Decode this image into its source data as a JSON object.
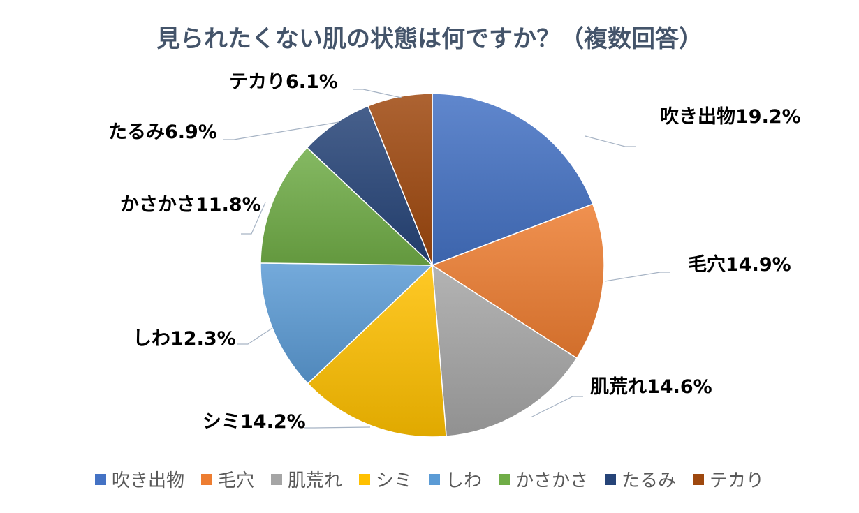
{
  "chart_data": {
    "type": "pie",
    "title": "見られたくない肌の状態は何ですか？（複数回答）",
    "categories": [
      "吹き出物",
      "毛穴",
      "肌荒れ",
      "シミ",
      "しわ",
      "かさかさ",
      "たるみ",
      "テカり"
    ],
    "values": [
      19.2,
      14.9,
      14.6,
      14.2,
      12.3,
      11.8,
      6.9,
      6.1
    ],
    "unit": "%",
    "data_labels": [
      "吹き出物19.2%",
      "毛穴14.9%",
      "肌荒れ14.6%",
      "シミ14.2%",
      "しわ12.3%",
      "かさかさ11.8%",
      "たるみ6.9%",
      "テカり6.1%"
    ],
    "colors": [
      "#4472c4",
      "#ed7d31",
      "#a5a5a5",
      "#ffc000",
      "#5b9bd5",
      "#70ad47",
      "#264478",
      "#9e480e"
    ],
    "legend_position": "bottom"
  }
}
